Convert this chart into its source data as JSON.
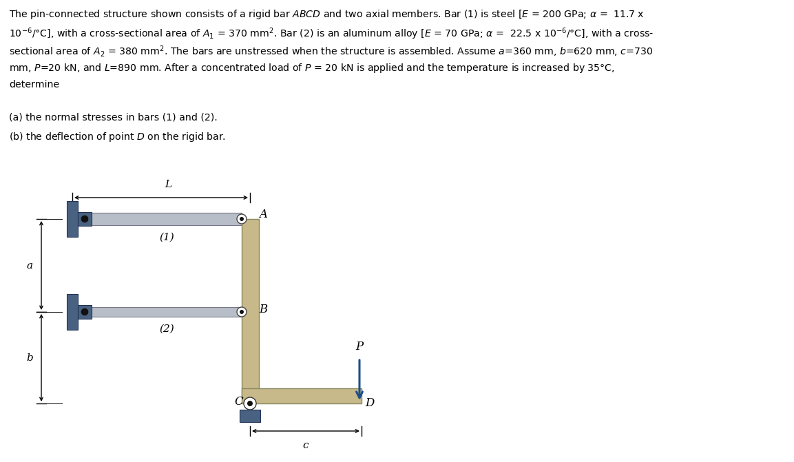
{
  "fig_width": 11.53,
  "fig_height": 6.71,
  "dpi": 100,
  "bar_color": "#C8B98A",
  "steel_color": "#B8BEC8",
  "wall_color": "#4A6282",
  "arrow_color": "#1C4E8A",
  "background": "#ffffff",
  "text_lines": [
    "The pin-connected structure shown consists of a rigid bar $\\mathit{ABCD}$ and two axial members. Bar (1) is steel [$E$ = 200 GPa; $\\alpha$ =  11.7 x",
    "10$^{-6}$/°C], with a cross-sectional area of $A_1$ = 370 mm$^2$. Bar (2) is an aluminum alloy [$E$ = 70 GPa; $\\alpha$ =  22.5 x 10$^{-6}$/°C], with a cross-",
    "sectional area of $A_2$ = 380 mm$^2$. The bars are unstressed when the structure is assembled. Assume $a$=360 mm, $b$=620 mm, $c$=730",
    "mm, $P$=20 kN, and $L$=890 mm. After a concentrated load of $P$ = 20 kN is applied and the temperature is increased by 35°C,",
    "determine"
  ],
  "sub_lines": [
    "(a) the normal stresses in bars (1) and (2).",
    "(b) the deflection of point $\\mathit{D}$ on the rigid bar."
  ]
}
